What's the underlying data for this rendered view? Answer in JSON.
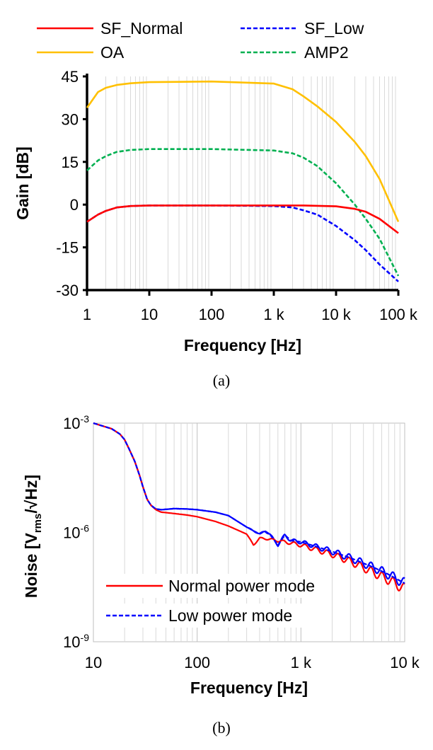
{
  "chart_data": [
    {
      "type": "line",
      "panel_label": "(a)",
      "title": "",
      "xlabel": "Frequency [Hz]",
      "ylabel": "Gain [dB]",
      "xscale": "log",
      "xlim": [
        1,
        100000
      ],
      "ylim": [
        -30,
        45
      ],
      "grid": "vertical minor log gridlines",
      "legend_position": "top, two columns above plot",
      "xticks": [
        1,
        10,
        100,
        1000,
        10000,
        100000
      ],
      "xtick_labels": [
        "1",
        "10",
        "100",
        "1 k",
        "10 k",
        "100 k"
      ],
      "yticks": [
        -30,
        -15,
        0,
        15,
        30,
        45
      ],
      "ytick_labels": [
        "-30",
        "-15",
        "0",
        "15",
        "30",
        "45"
      ],
      "series": [
        {
          "name": "SF_Normal",
          "color": "#ff0000",
          "style": "solid",
          "x": [
            1,
            1.5,
            2,
            3,
            5,
            10,
            100,
            1000,
            3000,
            10000,
            20000,
            30000,
            50000,
            100000
          ],
          "y": [
            -6,
            -3.5,
            -2.2,
            -1,
            -0.5,
            -0.3,
            -0.3,
            -0.3,
            -0.3,
            -0.6,
            -1.5,
            -2.5,
            -5,
            -10
          ]
        },
        {
          "name": "SF_Low",
          "color": "#0000ff",
          "style": "dashed",
          "x": [
            1,
            1.5,
            2,
            3,
            5,
            10,
            100,
            1000,
            2000,
            3000,
            5000,
            10000,
            20000,
            30000,
            50000,
            100000
          ],
          "y": [
            -6,
            -3.5,
            -2.2,
            -1,
            -0.5,
            -0.3,
            -0.3,
            -0.5,
            -1,
            -2,
            -3.5,
            -7.5,
            -12.5,
            -16,
            -21,
            -27
          ]
        },
        {
          "name": "OA",
          "color": "#ffc000",
          "style": "solid",
          "x": [
            1,
            1.5,
            2,
            3,
            5,
            10,
            100,
            1000,
            2000,
            3000,
            5000,
            10000,
            20000,
            30000,
            50000,
            100000
          ],
          "y": [
            34,
            39.5,
            41,
            42,
            42.6,
            43,
            43.2,
            42.5,
            40.5,
            38,
            34.5,
            29,
            22,
            17,
            9,
            -6
          ]
        },
        {
          "name": "AMP2",
          "color": "#00b050",
          "style": "dashed",
          "x": [
            1,
            1.5,
            2,
            3,
            5,
            10,
            100,
            1000,
            2000,
            3000,
            5000,
            10000,
            20000,
            30000,
            50000,
            100000
          ],
          "y": [
            12,
            15.5,
            17,
            18.5,
            19.2,
            19.5,
            19.5,
            19,
            18,
            16.5,
            13.5,
            7.5,
            0,
            -5,
            -12,
            -25
          ]
        }
      ]
    },
    {
      "type": "line",
      "panel_label": "(b)",
      "title": "",
      "xlabel": "Frequency [Hz]",
      "ylabel": "Noise [Vrms/√Hz]",
      "ylabel_parts": {
        "pre": "Noise [V",
        "sub": "rms",
        "post": "/√Hz]"
      },
      "xscale": "log",
      "yscale": "log",
      "xlim": [
        10,
        10000
      ],
      "ylim": [
        1e-09,
        0.001
      ],
      "grid": "vertical minor log gridlines",
      "legend_position": "lower-left inside plot",
      "xticks": [
        10,
        100,
        1000,
        10000
      ],
      "xtick_labels": [
        "10",
        "100",
        "1 k",
        "10 k"
      ],
      "yticks": [
        1e-09,
        1e-06,
        0.001
      ],
      "ytick_labels": [
        {
          "base": "10",
          "exp": "-9"
        },
        {
          "base": "10",
          "exp": "-6"
        },
        {
          "base": "10",
          "exp": "-3"
        }
      ],
      "series": [
        {
          "name": "Normal power mode",
          "color": "#ff0000",
          "style": "solid",
          "x": [
            10,
            12,
            15,
            18,
            20,
            22,
            25,
            28,
            30,
            33,
            36,
            40,
            45,
            50,
            60,
            80,
            100,
            150,
            200,
            300,
            350,
            400,
            500,
            700,
            1000,
            2000,
            3000,
            5000,
            7000,
            10000
          ],
          "y": [
            0.001,
            0.00085,
            0.0007,
            0.0005,
            0.00035,
            0.0002,
            9e-05,
            3.5e-05,
            1.8e-05,
            8e-06,
            5.5e-06,
            4.2e-06,
            3.6e-06,
            3.5e-06,
            3.3e-06,
            3e-06,
            2.7e-06,
            2e-06,
            1.5e-06,
            9e-07,
            4.5e-07,
            7e-07,
            6.5e-07,
            5.5e-07,
            4.5e-07,
            2.5e-07,
            1.6e-07,
            8e-08,
            5e-08,
            2.8e-08
          ]
        },
        {
          "name": "Low power mode",
          "color": "#0000ff",
          "style": "dashed",
          "x": [
            10,
            12,
            15,
            18,
            20,
            22,
            25,
            28,
            30,
            33,
            36,
            40,
            45,
            50,
            60,
            80,
            100,
            150,
            200,
            300,
            400,
            450,
            500,
            600,
            700,
            800,
            1000,
            2000,
            3000,
            5000,
            7000,
            10000
          ],
          "y": [
            0.001,
            0.00085,
            0.0007,
            0.0005,
            0.00035,
            0.0002,
            9e-05,
            3.5e-05,
            1.8e-05,
            8e-06,
            5.5e-06,
            4.4e-06,
            4.2e-06,
            4.3e-06,
            4.5e-06,
            4.4e-06,
            4.2e-06,
            3.6e-06,
            2.9e-06,
            1.4e-06,
            9e-07,
            1.1e-06,
            9e-07,
            4.5e-07,
            8.5e-07,
            6e-07,
            5.5e-07,
            3e-07,
            2e-07,
            1.1e-07,
            7e-08,
            4e-08
          ]
        }
      ]
    }
  ]
}
